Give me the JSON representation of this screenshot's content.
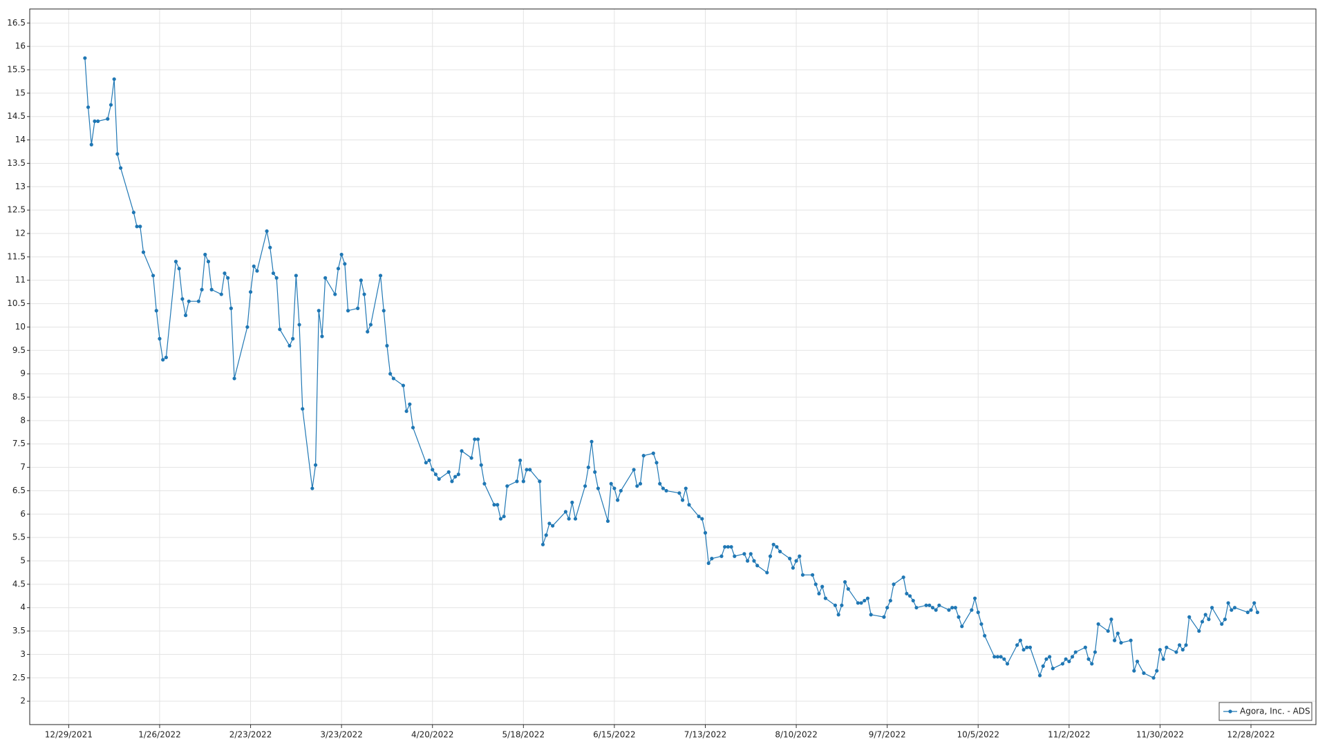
{
  "chart_data": {
    "type": "line",
    "x": [
      "1/3/2022",
      "1/4/2022",
      "1/5/2022",
      "1/6/2022",
      "1/7/2022",
      "1/10/2022",
      "1/11/2022",
      "1/12/2022",
      "1/13/2022",
      "1/14/2022",
      "1/18/2022",
      "1/19/2022",
      "1/20/2022",
      "1/21/2022",
      "1/24/2022",
      "1/25/2022",
      "1/26/2022",
      "1/27/2022",
      "1/28/2022",
      "1/31/2022",
      "2/1/2022",
      "2/2/2022",
      "2/3/2022",
      "2/4/2022",
      "2/7/2022",
      "2/8/2022",
      "2/9/2022",
      "2/10/2022",
      "2/11/2022",
      "2/14/2022",
      "2/15/2022",
      "2/16/2022",
      "2/17/2022",
      "2/18/2022",
      "2/22/2022",
      "2/23/2022",
      "2/24/2022",
      "2/25/2022",
      "2/28/2022",
      "3/1/2022",
      "3/2/2022",
      "3/3/2022",
      "3/4/2022",
      "3/7/2022",
      "3/8/2022",
      "3/9/2022",
      "3/10/2022",
      "3/11/2022",
      "3/14/2022",
      "3/15/2022",
      "3/16/2022",
      "3/17/2022",
      "3/18/2022",
      "3/21/2022",
      "3/22/2022",
      "3/23/2022",
      "3/24/2022",
      "3/25/2022",
      "3/28/2022",
      "3/29/2022",
      "3/30/2022",
      "3/31/2022",
      "4/1/2022",
      "4/4/2022",
      "4/5/2022",
      "4/6/2022",
      "4/7/2022",
      "4/8/2022",
      "4/11/2022",
      "4/12/2022",
      "4/13/2022",
      "4/14/2022",
      "4/18/2022",
      "4/19/2022",
      "4/20/2022",
      "4/21/2022",
      "4/22/2022",
      "4/25/2022",
      "4/26/2022",
      "4/27/2022",
      "4/28/2022",
      "4/29/2022",
      "5/2/2022",
      "5/3/2022",
      "5/4/2022",
      "5/5/2022",
      "5/6/2022",
      "5/9/2022",
      "5/10/2022",
      "5/11/2022",
      "5/12/2022",
      "5/13/2022",
      "5/16/2022",
      "5/17/2022",
      "5/18/2022",
      "5/19/2022",
      "5/20/2022",
      "5/23/2022",
      "5/24/2022",
      "5/25/2022",
      "5/26/2022",
      "5/27/2022",
      "5/31/2022",
      "6/1/2022",
      "6/2/2022",
      "6/3/2022",
      "6/6/2022",
      "6/7/2022",
      "6/8/2022",
      "6/9/2022",
      "6/10/2022",
      "6/13/2022",
      "6/14/2022",
      "6/15/2022",
      "6/16/2022",
      "6/17/2022",
      "6/21/2022",
      "6/22/2022",
      "6/23/2022",
      "6/24/2022",
      "6/27/2022",
      "6/28/2022",
      "6/29/2022",
      "6/30/2022",
      "7/1/2022",
      "7/5/2022",
      "7/6/2022",
      "7/7/2022",
      "7/8/2022",
      "7/11/2022",
      "7/12/2022",
      "7/13/2022",
      "7/14/2022",
      "7/15/2022",
      "7/18/2022",
      "7/19/2022",
      "7/20/2022",
      "7/21/2022",
      "7/22/2022",
      "7/25/2022",
      "7/26/2022",
      "7/27/2022",
      "7/28/2022",
      "7/29/2022",
      "8/1/2022",
      "8/2/2022",
      "8/3/2022",
      "8/4/2022",
      "8/5/2022",
      "8/8/2022",
      "8/9/2022",
      "8/10/2022",
      "8/11/2022",
      "8/12/2022",
      "8/15/2022",
      "8/16/2022",
      "8/17/2022",
      "8/18/2022",
      "8/19/2022",
      "8/22/2022",
      "8/23/2022",
      "8/24/2022",
      "8/25/2022",
      "8/26/2022",
      "8/29/2022",
      "8/30/2022",
      "8/31/2022",
      "9/1/2022",
      "9/2/2022",
      "9/6/2022",
      "9/7/2022",
      "9/8/2022",
      "9/9/2022",
      "9/12/2022",
      "9/13/2022",
      "9/14/2022",
      "9/15/2022",
      "9/16/2022",
      "9/19/2022",
      "9/20/2022",
      "9/21/2022",
      "9/22/2022",
      "9/23/2022",
      "9/26/2022",
      "9/27/2022",
      "9/28/2022",
      "9/29/2022",
      "9/30/2022",
      "10/3/2022",
      "10/4/2022",
      "10/5/2022",
      "10/6/2022",
      "10/7/2022",
      "10/10/2022",
      "10/11/2022",
      "10/12/2022",
      "10/13/2022",
      "10/14/2022",
      "10/17/2022",
      "10/18/2022",
      "10/19/2022",
      "10/20/2022",
      "10/21/2022",
      "10/24/2022",
      "10/25/2022",
      "10/26/2022",
      "10/27/2022",
      "10/28/2022",
      "10/31/2022",
      "11/1/2022",
      "11/2/2022",
      "11/3/2022",
      "11/4/2022",
      "11/7/2022",
      "11/8/2022",
      "11/9/2022",
      "11/10/2022",
      "11/11/2022",
      "11/14/2022",
      "11/15/2022",
      "11/16/2022",
      "11/17/2022",
      "11/18/2022",
      "11/21/2022",
      "11/22/2022",
      "11/23/2022",
      "11/25/2022",
      "11/28/2022",
      "11/29/2022",
      "11/30/2022",
      "12/1/2022",
      "12/2/2022",
      "12/5/2022",
      "12/6/2022",
      "12/7/2022",
      "12/8/2022",
      "12/9/2022",
      "12/12/2022",
      "12/13/2022",
      "12/14/2022",
      "12/15/2022",
      "12/16/2022",
      "12/19/2022",
      "12/20/2022",
      "12/21/2022",
      "12/22/2022",
      "12/23/2022",
      "12/27/2022",
      "12/28/2022",
      "12/29/2022",
      "12/30/2022"
    ],
    "series": [
      {
        "name": "Agora, Inc. - ADS",
        "color": "#1f77b4",
        "values": [
          15.75,
          14.7,
          13.9,
          14.4,
          14.4,
          14.45,
          14.75,
          15.3,
          13.7,
          13.4,
          12.45,
          12.15,
          12.15,
          11.6,
          11.1,
          10.35,
          9.75,
          9.3,
          9.35,
          11.4,
          11.25,
          10.6,
          10.25,
          10.55,
          10.55,
          10.8,
          11.55,
          11.4,
          10.8,
          10.7,
          11.15,
          11.05,
          10.4,
          8.9,
          10.0,
          10.75,
          11.3,
          11.2,
          12.05,
          11.7,
          11.15,
          11.05,
          9.95,
          9.6,
          9.75,
          11.1,
          10.05,
          8.25,
          6.55,
          7.05,
          10.35,
          9.8,
          11.05,
          10.7,
          11.25,
          11.55,
          11.35,
          10.35,
          10.4,
          11.0,
          10.7,
          9.9,
          10.05,
          11.1,
          10.35,
          9.6,
          9.0,
          8.9,
          8.75,
          8.2,
          8.35,
          7.85,
          7.1,
          7.15,
          6.95,
          6.85,
          6.75,
          6.9,
          6.7,
          6.8,
          6.85,
          7.35,
          7.2,
          7.6,
          7.6,
          7.05,
          6.65,
          6.2,
          6.2,
          5.9,
          5.95,
          6.6,
          6.7,
          7.15,
          6.7,
          6.95,
          6.95,
          6.7,
          5.35,
          5.55,
          5.8,
          5.75,
          6.05,
          5.9,
          6.25,
          5.9,
          6.6,
          7.0,
          7.55,
          6.9,
          6.55,
          5.85,
          6.65,
          6.55,
          6.3,
          6.5,
          6.95,
          6.6,
          6.65,
          7.25,
          7.3,
          7.1,
          6.65,
          6.55,
          6.5,
          6.45,
          6.3,
          6.55,
          6.2,
          5.95,
          5.9,
          5.6,
          4.95,
          5.05,
          5.1,
          5.3,
          5.3,
          5.3,
          5.1,
          5.15,
          5.0,
          5.15,
          5.0,
          4.9,
          4.75,
          5.1,
          5.35,
          5.3,
          5.2,
          5.05,
          4.85,
          5.0,
          5.1,
          4.7,
          4.7,
          4.5,
          4.3,
          4.45,
          4.2,
          4.05,
          3.85,
          4.05,
          4.55,
          4.4,
          4.1,
          4.1,
          4.15,
          4.2,
          3.85,
          3.8,
          4.0,
          4.15,
          4.5,
          4.65,
          4.3,
          4.25,
          4.15,
          4.0,
          4.05,
          4.05,
          4.0,
          3.95,
          4.05,
          3.95,
          4.0,
          4.0,
          3.8,
          3.6,
          3.95,
          4.2,
          3.9,
          3.65,
          3.4,
          2.95,
          2.95,
          2.95,
          2.9,
          2.8,
          3.2,
          3.3,
          3.1,
          3.15,
          3.15,
          2.55,
          2.75,
          2.9,
          2.95,
          2.7,
          2.8,
          2.9,
          2.85,
          2.95,
          3.05,
          3.15,
          2.9,
          2.8,
          3.05,
          3.65,
          3.5,
          3.75,
          3.3,
          3.45,
          3.25,
          3.3,
          2.65,
          2.85,
          2.6,
          2.5,
          2.65,
          3.1,
          2.9,
          3.15,
          3.05,
          3.2,
          3.1,
          3.2,
          3.8,
          3.5,
          3.7,
          3.85,
          3.75,
          4.0,
          3.65,
          3.75,
          4.1,
          3.95,
          4.0,
          3.9,
          3.95,
          4.1,
          3.9
        ]
      }
    ],
    "xlim": [
      "12/17/2021",
      "1/17/2023"
    ],
    "xticks": [
      "12/29/2021",
      "1/26/2022",
      "2/23/2022",
      "3/23/2022",
      "4/20/2022",
      "5/18/2022",
      "6/15/2022",
      "7/13/2022",
      "8/10/2022",
      "9/7/2022",
      "10/5/2022",
      "11/2/2022",
      "11/30/2022",
      "12/28/2022"
    ],
    "ylim": [
      1.5,
      16.8
    ],
    "yticks": [
      2,
      2.5,
      3,
      3.5,
      4,
      4.5,
      5,
      5.5,
      6,
      6.5,
      7,
      7.5,
      8,
      8.5,
      9,
      9.5,
      10,
      10.5,
      11,
      11.5,
      12,
      12.5,
      13,
      13.5,
      14,
      14.5,
      15,
      15.5,
      16,
      16.5
    ],
    "grid": true,
    "legend": "lower right"
  }
}
